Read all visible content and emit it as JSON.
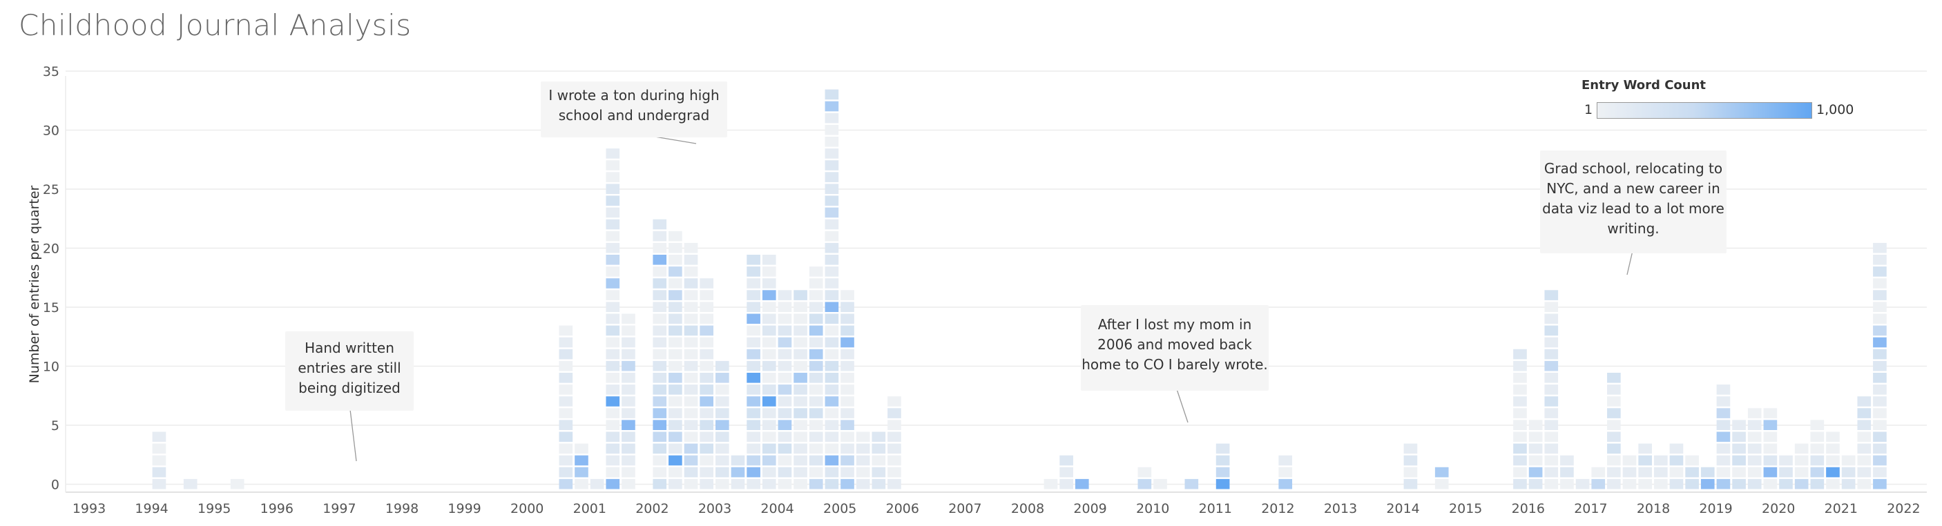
{
  "title": "Childhood Journal Analysis",
  "legend": {
    "title": "Entry Word Count",
    "min_label": "1",
    "max_label": "1,000",
    "color_low": "#eef1f4",
    "color_mid": "#c9dcf2",
    "color_high": "#62a6f2"
  },
  "annotations": [
    {
      "id": "hs",
      "text": [
        "I wrote a ton during high",
        "school and undergrad"
      ]
    },
    {
      "id": "hw",
      "text": [
        "Hand written",
        "entries are still",
        "being digitized"
      ]
    },
    {
      "id": "mom",
      "text": [
        "After I lost my mom in",
        "2006 and moved back",
        "home to CO I barely wrote."
      ]
    },
    {
      "id": "grad",
      "text": [
        "Grad school, relocating to",
        "NYC, and a new career in",
        "data viz lead to a lot more",
        "writing."
      ]
    }
  ],
  "chart_data": {
    "type": "bar",
    "subtype": "stacked unit squares per entry, colored by entry word count",
    "ylabel": "Number of entries per quarter",
    "xlabel": "",
    "ylim": [
      0,
      35
    ],
    "yticks": [
      0,
      5,
      10,
      15,
      20,
      25,
      30,
      35
    ],
    "xticks": [
      "1993",
      "1994",
      "1995",
      "1996",
      "1997",
      "1998",
      "1999",
      "2000",
      "2001",
      "2002",
      "2003",
      "2004",
      "2005",
      "2006",
      "2007",
      "2008",
      "2009",
      "2010",
      "2011",
      "2012",
      "2013",
      "2014",
      "2015",
      "2016",
      "2017",
      "2018",
      "2019",
      "2020",
      "2021",
      "2022"
    ],
    "grid": "horizontal",
    "legend_position": "top-right",
    "series": [
      {
        "values": [
          {
            "year": 1994,
            "q": 1,
            "count": 5
          },
          {
            "year": 1994,
            "q": 3,
            "count": 1
          },
          {
            "year": 1995,
            "q": 2,
            "count": 1
          },
          {
            "year": 2000,
            "q": 3,
            "count": 14
          },
          {
            "year": 2000,
            "q": 4,
            "count": 4
          },
          {
            "year": 2001,
            "q": 1,
            "count": 1
          },
          {
            "year": 2001,
            "q": 2,
            "count": 29
          },
          {
            "year": 2001,
            "q": 3,
            "count": 15
          },
          {
            "year": 2002,
            "q": 1,
            "count": 23
          },
          {
            "year": 2002,
            "q": 2,
            "count": 22
          },
          {
            "year": 2002,
            "q": 3,
            "count": 21
          },
          {
            "year": 2002,
            "q": 4,
            "count": 18
          },
          {
            "year": 2003,
            "q": 1,
            "count": 11
          },
          {
            "year": 2003,
            "q": 2,
            "count": 3
          },
          {
            "year": 2003,
            "q": 3,
            "count": 20
          },
          {
            "year": 2003,
            "q": 4,
            "count": 20
          },
          {
            "year": 2004,
            "q": 1,
            "count": 17
          },
          {
            "year": 2004,
            "q": 2,
            "count": 17
          },
          {
            "year": 2004,
            "q": 3,
            "count": 19
          },
          {
            "year": 2004,
            "q": 4,
            "count": 34
          },
          {
            "year": 2005,
            "q": 1,
            "count": 17
          },
          {
            "year": 2005,
            "q": 2,
            "count": 5
          },
          {
            "year": 2005,
            "q": 3,
            "count": 5
          },
          {
            "year": 2005,
            "q": 4,
            "count": 8
          },
          {
            "year": 2008,
            "q": 2,
            "count": 1
          },
          {
            "year": 2008,
            "q": 3,
            "count": 3
          },
          {
            "year": 2008,
            "q": 4,
            "count": 1
          },
          {
            "year": 2009,
            "q": 4,
            "count": 2
          },
          {
            "year": 2010,
            "q": 1,
            "count": 1
          },
          {
            "year": 2010,
            "q": 3,
            "count": 1
          },
          {
            "year": 2011,
            "q": 1,
            "count": 4
          },
          {
            "year": 2012,
            "q": 1,
            "count": 3
          },
          {
            "year": 2014,
            "q": 1,
            "count": 4
          },
          {
            "year": 2014,
            "q": 3,
            "count": 2
          },
          {
            "year": 2015,
            "q": 4,
            "count": 12
          },
          {
            "year": 2016,
            "q": 1,
            "count": 6
          },
          {
            "year": 2016,
            "q": 2,
            "count": 17
          },
          {
            "year": 2016,
            "q": 3,
            "count": 3
          },
          {
            "year": 2016,
            "q": 4,
            "count": 1
          },
          {
            "year": 2017,
            "q": 1,
            "count": 2
          },
          {
            "year": 2017,
            "q": 2,
            "count": 10
          },
          {
            "year": 2017,
            "q": 3,
            "count": 3
          },
          {
            "year": 2017,
            "q": 4,
            "count": 4
          },
          {
            "year": 2018,
            "q": 1,
            "count": 3
          },
          {
            "year": 2018,
            "q": 2,
            "count": 4
          },
          {
            "year": 2018,
            "q": 3,
            "count": 3
          },
          {
            "year": 2018,
            "q": 4,
            "count": 2
          },
          {
            "year": 2019,
            "q": 1,
            "count": 9
          },
          {
            "year": 2019,
            "q": 2,
            "count": 6
          },
          {
            "year": 2019,
            "q": 3,
            "count": 7
          },
          {
            "year": 2019,
            "q": 4,
            "count": 7
          },
          {
            "year": 2020,
            "q": 1,
            "count": 3
          },
          {
            "year": 2020,
            "q": 2,
            "count": 4
          },
          {
            "year": 2020,
            "q": 3,
            "count": 6
          },
          {
            "year": 2020,
            "q": 4,
            "count": 5
          },
          {
            "year": 2021,
            "q": 1,
            "count": 3
          },
          {
            "year": 2021,
            "q": 2,
            "count": 8
          },
          {
            "year": 2021,
            "q": 3,
            "count": 21
          }
        ]
      }
    ]
  }
}
